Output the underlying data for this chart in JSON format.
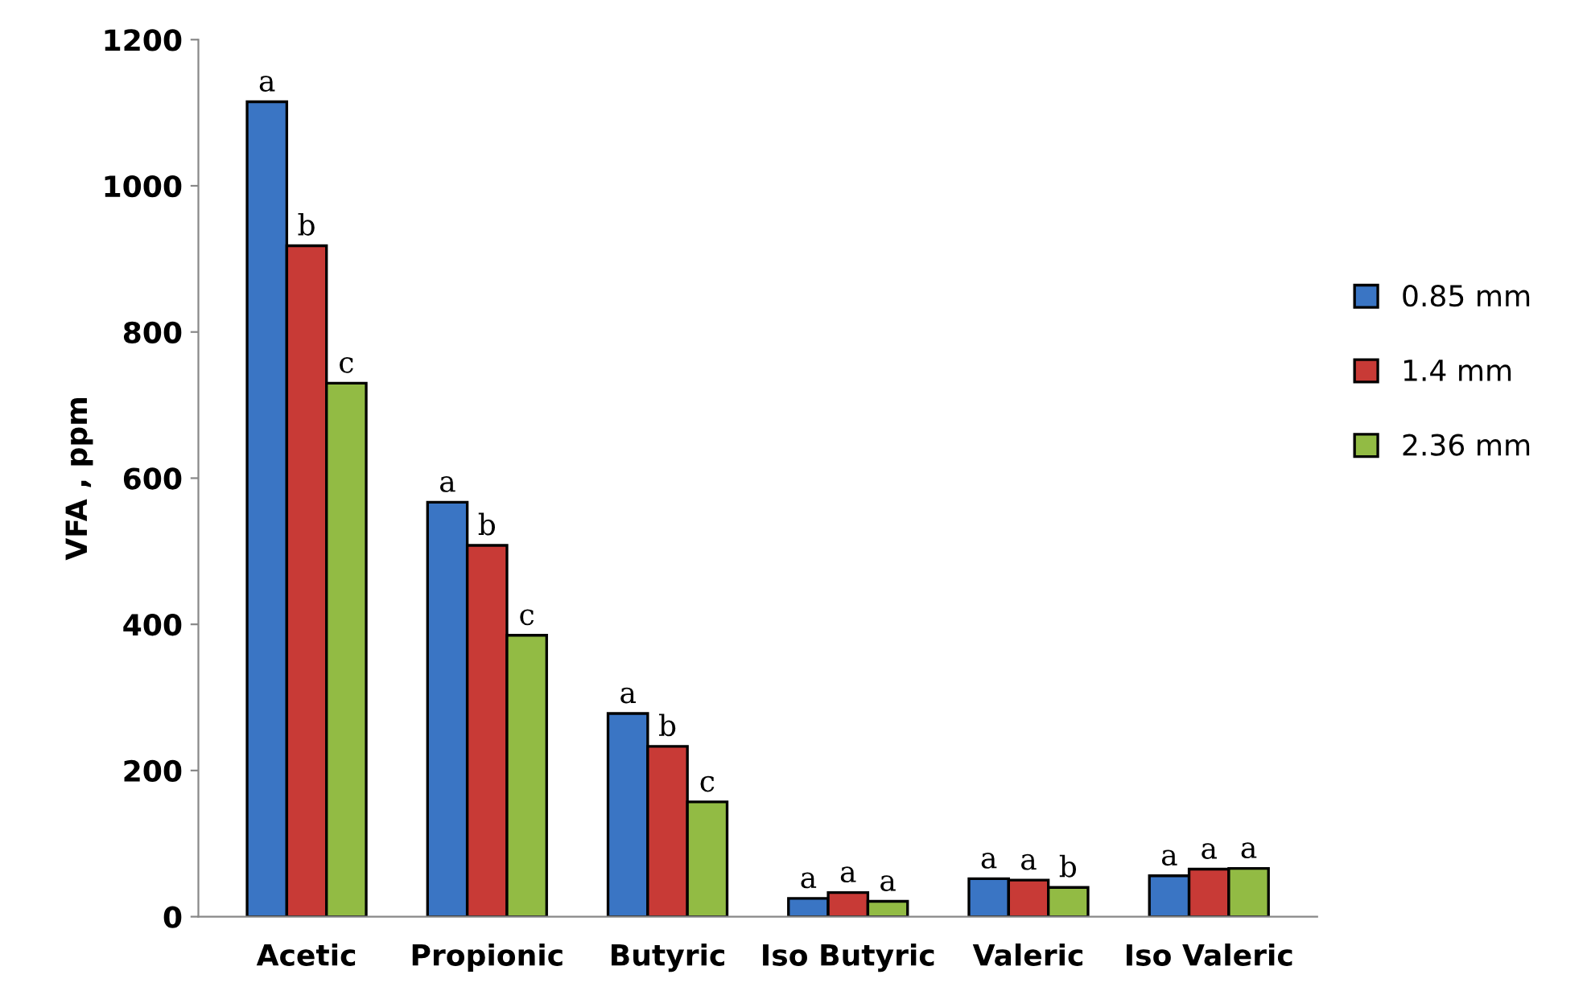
{
  "chart_data": {
    "type": "bar",
    "ylabel": "VFA , ppm",
    "categories": [
      "Acetic",
      "Propionic",
      "Butyric",
      "Iso Butyric",
      "Valeric",
      "Iso Valeric"
    ],
    "series": [
      {
        "name": "0.85 mm",
        "color": "#3a75c4",
        "values": [
          1115,
          567,
          278,
          25,
          52,
          56
        ],
        "value_labels": [
          "a",
          "a",
          "a",
          "a",
          "a",
          "a"
        ]
      },
      {
        "name": "1.4 mm",
        "color": "#c83a36",
        "values": [
          918,
          508,
          233,
          33,
          50,
          65
        ],
        "value_labels": [
          "b",
          "b",
          "b",
          "a",
          "a",
          "a"
        ]
      },
      {
        "name": "2.36 mm",
        "color": "#92bb44",
        "values": [
          730,
          385,
          157,
          21,
          40,
          66
        ],
        "value_labels": [
          "c",
          "c",
          "c",
          "a",
          "b",
          "a"
        ]
      }
    ],
    "ylim": [
      0,
      1200
    ],
    "yticks": [
      0,
      200,
      400,
      600,
      800,
      1000,
      1200
    ],
    "grid": false,
    "legend": "right"
  }
}
